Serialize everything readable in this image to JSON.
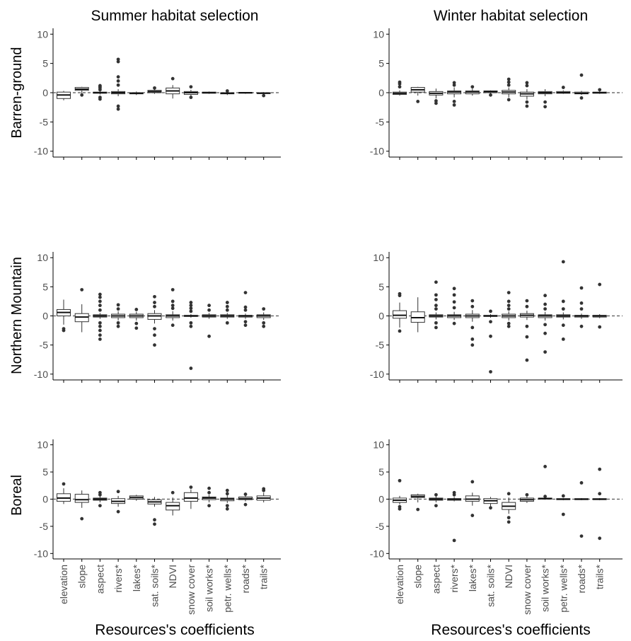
{
  "chart_data": {
    "type": "box",
    "columns": [
      "Summer habitat selection",
      "Winter habitat selection"
    ],
    "rows": [
      "Barren-ground",
      "Northern Mountain",
      "Boreal"
    ],
    "xlabel": "Resources's coefficients",
    "ylim": [
      -11,
      11
    ],
    "yticks": [
      "10",
      "5",
      "0",
      "-5",
      "-10"
    ],
    "categories": [
      "elevation",
      "slope",
      "aspect",
      "rivers*",
      "lakes*",
      "sat. soils*",
      "NDVI",
      "snow cover",
      "soil works*",
      "petr. wells*",
      "roads*",
      "trails*"
    ],
    "reference_line": 0,
    "panels": [
      {
        "column": "Summer habitat selection",
        "row": "Barren-ground",
        "boxes": [
          {
            "q1": -1.0,
            "median": -0.4,
            "q3": 0.1,
            "lo": -1.3,
            "hi": 0.3,
            "outliers": []
          },
          {
            "q1": 0.4,
            "median": 0.6,
            "q3": 0.9,
            "lo": -0.2,
            "hi": 1.0,
            "outliers": [
              -0.4
            ]
          },
          {
            "q1": -0.1,
            "median": 0.0,
            "q3": 0.1,
            "lo": -0.3,
            "hi": 0.3,
            "outliers": [
              -1.1,
              -0.8,
              0.5,
              0.8,
              1.0,
              1.2
            ]
          },
          {
            "q1": -0.2,
            "median": 0.0,
            "q3": 0.2,
            "lo": -0.6,
            "hi": 0.6,
            "outliers": [
              -2.8,
              -2.3,
              1.3,
              2.0,
              2.7,
              5.3,
              5.7
            ]
          },
          {
            "q1": -0.2,
            "median": -0.1,
            "q3": 0.0,
            "lo": -0.4,
            "hi": 0.2,
            "outliers": []
          },
          {
            "q1": 0.0,
            "median": 0.2,
            "q3": 0.4,
            "lo": -0.2,
            "hi": 0.6,
            "outliers": [
              0.8
            ]
          },
          {
            "q1": -0.2,
            "median": 0.3,
            "q3": 0.8,
            "lo": -1.0,
            "hi": 1.3,
            "outliers": [
              2.4
            ]
          },
          {
            "q1": -0.3,
            "median": 0.0,
            "q3": 0.2,
            "lo": -0.6,
            "hi": 0.5,
            "outliers": [
              -0.8,
              1.0
            ]
          },
          {
            "q1": -0.1,
            "median": 0.0,
            "q3": 0.1,
            "lo": -0.2,
            "hi": 0.2,
            "outliers": []
          },
          {
            "q1": -0.2,
            "median": -0.1,
            "q3": 0.0,
            "lo": -0.4,
            "hi": 0.2,
            "outliers": [
              0.3
            ]
          },
          {
            "q1": -0.1,
            "median": 0.0,
            "q3": 0.05,
            "lo": -0.2,
            "hi": 0.1,
            "outliers": []
          },
          {
            "q1": -0.1,
            "median": -0.1,
            "q3": 0.0,
            "lo": -0.3,
            "hi": 0.1,
            "outliers": [
              -0.5
            ]
          }
        ]
      },
      {
        "column": "Winter habitat selection",
        "row": "Barren-ground",
        "boxes": [
          {
            "q1": -0.3,
            "median": -0.1,
            "q3": 0.1,
            "lo": -0.5,
            "hi": 0.4,
            "outliers": [
              1.0,
              1.5,
              1.8
            ]
          },
          {
            "q1": 0.1,
            "median": 0.5,
            "q3": 0.9,
            "lo": -0.5,
            "hi": 1.0,
            "outliers": [
              -1.5
            ]
          },
          {
            "q1": -0.4,
            "median": -0.1,
            "q3": 0.2,
            "lo": -1.0,
            "hi": 0.7,
            "outliers": [
              -1.8,
              -1.4
            ]
          },
          {
            "q1": -0.2,
            "median": 0.1,
            "q3": 0.3,
            "lo": -0.8,
            "hi": 0.9,
            "outliers": [
              -2.1,
              -1.5,
              1.3,
              1.7
            ]
          },
          {
            "q1": -0.2,
            "median": 0.1,
            "q3": 0.3,
            "lo": -0.5,
            "hi": 0.7,
            "outliers": [
              1.0
            ]
          },
          {
            "q1": 0.0,
            "median": 0.2,
            "q3": 0.3,
            "lo": -0.2,
            "hi": 0.4,
            "outliers": [
              -0.4
            ]
          },
          {
            "q1": -0.2,
            "median": 0.1,
            "q3": 0.4,
            "lo": -0.8,
            "hi": 0.9,
            "outliers": [
              -1.2,
              1.3,
              1.8,
              2.3
            ]
          },
          {
            "q1": -0.6,
            "median": -0.2,
            "q3": 0.1,
            "lo": -1.2,
            "hi": 0.6,
            "outliers": [
              -2.3,
              -1.6,
              1.2,
              1.7
            ]
          },
          {
            "q1": -0.2,
            "median": 0.0,
            "q3": 0.2,
            "lo": -0.6,
            "hi": 0.6,
            "outliers": [
              -2.4,
              -1.6
            ]
          },
          {
            "q1": -0.1,
            "median": 0.0,
            "q3": 0.2,
            "lo": -0.2,
            "hi": 0.4,
            "outliers": [
              0.9
            ]
          },
          {
            "q1": -0.2,
            "median": -0.1,
            "q3": 0.1,
            "lo": -0.4,
            "hi": 0.3,
            "outliers": [
              -0.9,
              3.0
            ]
          },
          {
            "q1": -0.1,
            "median": 0.0,
            "q3": 0.1,
            "lo": -0.2,
            "hi": 0.3,
            "outliers": [
              0.5
            ]
          }
        ]
      },
      {
        "column": "Summer habitat selection",
        "row": "Northern Mountain",
        "boxes": [
          {
            "q1": 0.0,
            "median": 0.6,
            "q3": 1.1,
            "lo": -1.5,
            "hi": 2.8,
            "outliers": [
              -2.5,
              -2.2
            ]
          },
          {
            "q1": -1.0,
            "median": -0.2,
            "q3": 0.4,
            "lo": -2.8,
            "hi": 2.0,
            "outliers": [
              4.5
            ]
          },
          {
            "q1": -0.2,
            "median": 0.0,
            "q3": 0.2,
            "lo": -0.5,
            "hi": 0.5,
            "outliers": [
              -4.0,
              -3.3,
              -2.5,
              -1.8,
              -1.2,
              1.0,
              1.8,
              2.5,
              3.2,
              3.7
            ]
          },
          {
            "q1": -0.3,
            "median": 0.0,
            "q3": 0.3,
            "lo": -0.8,
            "hi": 0.8,
            "outliers": [
              -1.8,
              -1.2,
              1.2,
              1.9
            ]
          },
          {
            "q1": -0.3,
            "median": 0.0,
            "q3": 0.3,
            "lo": -0.8,
            "hi": 0.7,
            "outliers": [
              -2.1,
              -1.3,
              1.1
            ]
          },
          {
            "q1": -0.6,
            "median": 0.0,
            "q3": 0.4,
            "lo": -1.3,
            "hi": 1.0,
            "outliers": [
              -5.0,
              -3.3,
              -2.2,
              1.6,
              2.3,
              3.3
            ]
          },
          {
            "q1": -0.3,
            "median": 0.0,
            "q3": 0.2,
            "lo": -0.8,
            "hi": 0.8,
            "outliers": [
              -1.6,
              1.3,
              1.8,
              2.5,
              4.5
            ]
          },
          {
            "q1": -0.1,
            "median": 0.0,
            "q3": 0.1,
            "lo": -0.3,
            "hi": 0.3,
            "outliers": [
              -9.0,
              -1.8,
              -1.2,
              0.8,
              1.3,
              1.8,
              2.3
            ]
          },
          {
            "q1": -0.2,
            "median": 0.0,
            "q3": 0.2,
            "lo": -0.5,
            "hi": 0.5,
            "outliers": [
              -3.5,
              1.0,
              1.8
            ]
          },
          {
            "q1": -0.2,
            "median": 0.0,
            "q3": 0.2,
            "lo": -0.5,
            "hi": 0.5,
            "outliers": [
              -1.2,
              1.0,
              1.6,
              2.3
            ]
          },
          {
            "q1": -0.2,
            "median": 0.0,
            "q3": 0.1,
            "lo": -0.5,
            "hi": 0.4,
            "outliers": [
              -1.6,
              -1.0,
              1.0,
              1.5,
              4.0
            ]
          },
          {
            "q1": -0.3,
            "median": 0.0,
            "q3": 0.2,
            "lo": -0.7,
            "hi": 0.6,
            "outliers": [
              -1.8,
              -1.2,
              1.2
            ]
          }
        ]
      },
      {
        "column": "Winter habitat selection",
        "row": "Northern Mountain",
        "boxes": [
          {
            "q1": -0.4,
            "median": 0.1,
            "q3": 0.9,
            "lo": -2.0,
            "hi": 2.3,
            "outliers": [
              -2.6,
              3.5,
              3.8
            ]
          },
          {
            "q1": -1.1,
            "median": -0.3,
            "q3": 0.7,
            "lo": -2.8,
            "hi": 3.2,
            "outliers": []
          },
          {
            "q1": -0.2,
            "median": 0.0,
            "q3": 0.2,
            "lo": -0.6,
            "hi": 0.6,
            "outliers": [
              -2.0,
              -1.2,
              1.2,
              1.8,
              2.8,
              3.6,
              5.8
            ]
          },
          {
            "q1": -0.3,
            "median": 0.0,
            "q3": 0.2,
            "lo": -0.7,
            "hi": 0.7,
            "outliers": [
              -1.3,
              1.4,
              2.4,
              3.6,
              4.7
            ]
          },
          {
            "q1": -0.3,
            "median": 0.0,
            "q3": 0.3,
            "lo": -1.0,
            "hi": 1.0,
            "outliers": [
              -5.0,
              -4.0,
              -2.0,
              1.6,
              2.6
            ]
          },
          {
            "q1": -0.1,
            "median": 0.0,
            "q3": 0.1,
            "lo": -0.3,
            "hi": 0.3,
            "outliers": [
              -9.6,
              -3.5,
              -1.0,
              0.8
            ]
          },
          {
            "q1": -0.3,
            "median": 0.0,
            "q3": 0.3,
            "lo": -0.8,
            "hi": 0.8,
            "outliers": [
              -1.8,
              -1.3,
              1.2,
              1.8,
              2.5,
              4.0
            ]
          },
          {
            "q1": -0.2,
            "median": 0.1,
            "q3": 0.4,
            "lo": -0.7,
            "hi": 0.9,
            "outliers": [
              -7.6,
              -3.6,
              -1.8,
              1.6,
              2.6
            ]
          },
          {
            "q1": -0.3,
            "median": 0.0,
            "q3": 0.2,
            "lo": -0.8,
            "hi": 0.7,
            "outliers": [
              -6.2,
              -3.0,
              -1.5,
              1.2,
              2.0,
              3.5
            ]
          },
          {
            "q1": -0.2,
            "median": 0.0,
            "q3": 0.2,
            "lo": -0.6,
            "hi": 0.6,
            "outliers": [
              -4.0,
              -1.6,
              1.2,
              2.5,
              9.3
            ]
          },
          {
            "q1": -0.2,
            "median": 0.0,
            "q3": 0.1,
            "lo": -0.5,
            "hi": 0.4,
            "outliers": [
              -1.8,
              1.2,
              2.2,
              4.8
            ]
          },
          {
            "q1": -0.2,
            "median": 0.0,
            "q3": 0.1,
            "lo": -0.4,
            "hi": 0.3,
            "outliers": [
              -1.9,
              5.4
            ]
          }
        ]
      },
      {
        "column": "Summer habitat selection",
        "row": "Boreal",
        "boxes": [
          {
            "q1": -0.4,
            "median": 0.2,
            "q3": 1.0,
            "lo": -0.9,
            "hi": 2.0,
            "outliers": [
              2.8
            ]
          },
          {
            "q1": -0.6,
            "median": -0.1,
            "q3": 0.9,
            "lo": -1.6,
            "hi": 1.6,
            "outliers": [
              -3.6
            ]
          },
          {
            "q1": -0.2,
            "median": 0.0,
            "q3": 0.2,
            "lo": -0.6,
            "hi": 0.6,
            "outliers": [
              -1.2,
              0.8,
              1.2
            ]
          },
          {
            "q1": -0.8,
            "median": -0.4,
            "q3": 0.1,
            "lo": -1.4,
            "hi": 0.6,
            "outliers": [
              -2.3,
              1.4
            ]
          },
          {
            "q1": 0.0,
            "median": 0.3,
            "q3": 0.6,
            "lo": -0.3,
            "hi": 0.8,
            "outliers": []
          },
          {
            "q1": -0.9,
            "median": -0.5,
            "q3": -0.1,
            "lo": -1.4,
            "hi": 0.4,
            "outliers": [
              -4.6,
              -3.8
            ]
          },
          {
            "q1": -2.0,
            "median": -1.2,
            "q3": -0.6,
            "lo": -3.0,
            "hi": 0.3,
            "outliers": [
              1.2
            ]
          },
          {
            "q1": -0.4,
            "median": 0.2,
            "q3": 1.2,
            "lo": -1.8,
            "hi": 1.8,
            "outliers": [
              2.2
            ]
          },
          {
            "q1": -0.1,
            "median": 0.2,
            "q3": 0.4,
            "lo": -0.6,
            "hi": 0.8,
            "outliers": [
              -1.2,
              1.2,
              2.0
            ]
          },
          {
            "q1": -0.3,
            "median": 0.0,
            "q3": 0.2,
            "lo": -0.7,
            "hi": 0.7,
            "outliers": [
              -1.8,
              -1.2,
              1.0,
              1.6
            ]
          },
          {
            "q1": -0.1,
            "median": 0.1,
            "q3": 0.4,
            "lo": -0.4,
            "hi": 0.7,
            "outliers": [
              -1.0,
              0.9
            ]
          },
          {
            "q1": -0.2,
            "median": 0.2,
            "q3": 0.6,
            "lo": -0.6,
            "hi": 1.2,
            "outliers": [
              1.6,
              1.9
            ]
          }
        ]
      },
      {
        "column": "Winter habitat selection",
        "row": "Boreal",
        "boxes": [
          {
            "q1": -0.6,
            "median": -0.2,
            "q3": 0.2,
            "lo": -1.0,
            "hi": 0.6,
            "outliers": [
              -1.8,
              -1.4,
              3.4
            ]
          },
          {
            "q1": 0.3,
            "median": 0.5,
            "q3": 0.8,
            "lo": -0.6,
            "hi": 1.0,
            "outliers": [
              -1.9
            ]
          },
          {
            "q1": -0.2,
            "median": 0.0,
            "q3": 0.2,
            "lo": -0.6,
            "hi": 0.6,
            "outliers": [
              -1.2,
              0.8
            ]
          },
          {
            "q1": -0.2,
            "median": 0.0,
            "q3": 0.1,
            "lo": -0.4,
            "hi": 0.4,
            "outliers": [
              -7.6,
              0.8,
              1.2
            ]
          },
          {
            "q1": -0.4,
            "median": 0.0,
            "q3": 0.6,
            "lo": -1.2,
            "hi": 1.2,
            "outliers": [
              -3.0,
              3.2
            ]
          },
          {
            "q1": -0.8,
            "median": -0.3,
            "q3": 0.1,
            "lo": -1.4,
            "hi": 0.4,
            "outliers": [
              -1.6
            ]
          },
          {
            "q1": -1.9,
            "median": -1.3,
            "q3": -0.6,
            "lo": -2.7,
            "hi": 0.3,
            "outliers": [
              -4.2,
              -3.4,
              1.0
            ]
          },
          {
            "q1": -0.4,
            "median": -0.1,
            "q3": 0.2,
            "lo": -0.7,
            "hi": 0.5,
            "outliers": [
              0.8
            ]
          },
          {
            "q1": 0.0,
            "median": 0.1,
            "q3": 0.2,
            "lo": -0.1,
            "hi": 0.3,
            "outliers": [
              6.0,
              0.5
            ]
          },
          {
            "q1": -0.1,
            "median": 0.0,
            "q3": 0.1,
            "lo": -0.2,
            "hi": 0.2,
            "outliers": [
              -2.8,
              0.6
            ]
          },
          {
            "q1": -0.1,
            "median": 0.0,
            "q3": 0.1,
            "lo": -0.2,
            "hi": 0.2,
            "outliers": [
              -6.8,
              3.0
            ]
          },
          {
            "q1": -0.1,
            "median": 0.0,
            "q3": 0.1,
            "lo": -0.2,
            "hi": 0.2,
            "outliers": [
              -7.2,
              1.0,
              5.5
            ]
          }
        ]
      }
    ]
  }
}
